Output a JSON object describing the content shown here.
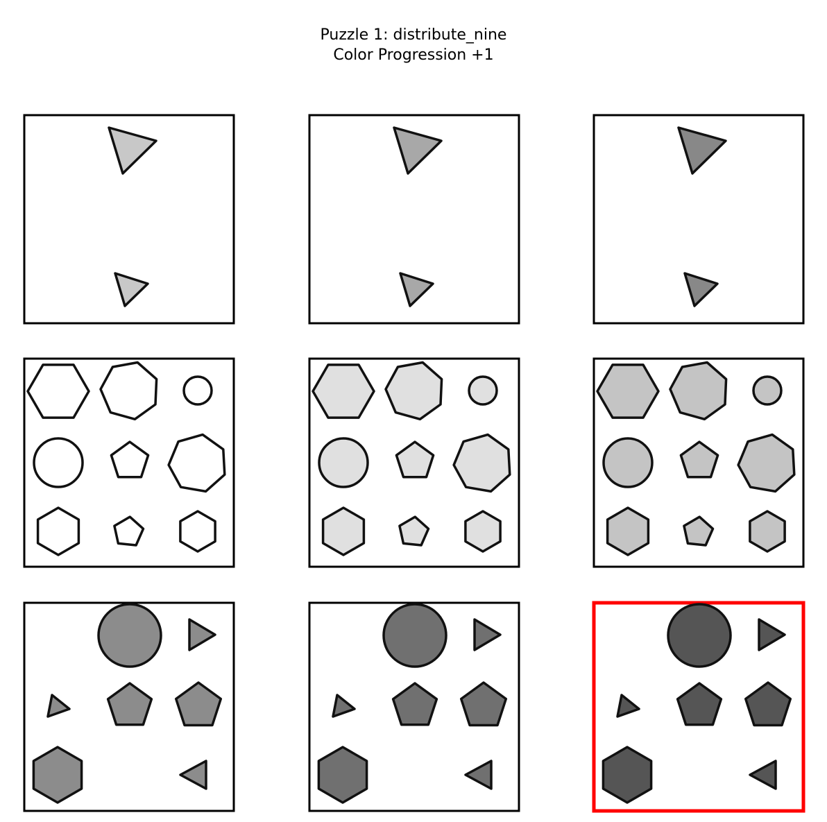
{
  "header": {
    "title": "Puzzle 1: distribute_nine",
    "subtitle": "Color Progression +1"
  }
}
